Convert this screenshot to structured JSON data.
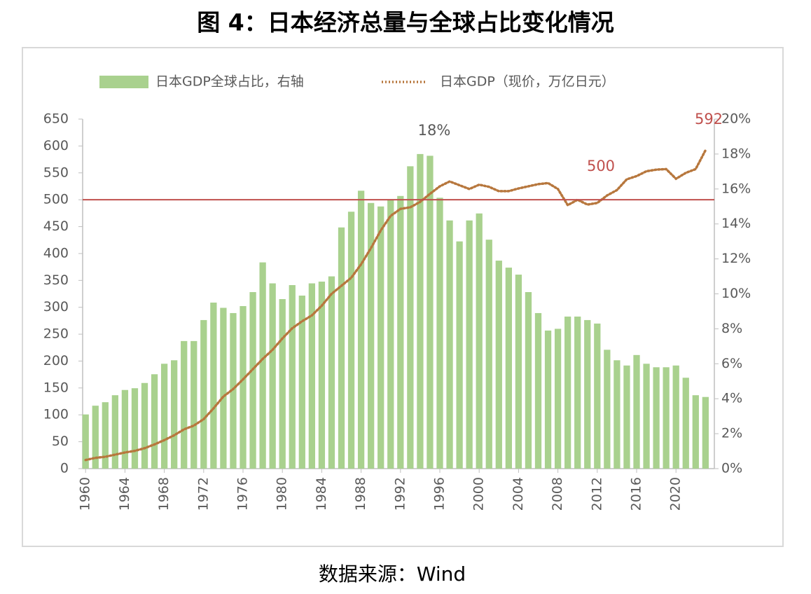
{
  "chart_data": {
    "type": "bar",
    "title": "图 4：日本经济总量与全球占比变化情况",
    "source": "数据来源：Wind",
    "x": [
      1960,
      1961,
      1962,
      1963,
      1964,
      1965,
      1966,
      1967,
      1968,
      1969,
      1970,
      1971,
      1972,
      1973,
      1974,
      1975,
      1976,
      1977,
      1978,
      1979,
      1980,
      1981,
      1982,
      1983,
      1984,
      1985,
      1986,
      1987,
      1988,
      1989,
      1990,
      1991,
      1992,
      1993,
      1994,
      1995,
      1996,
      1997,
      1998,
      1999,
      2000,
      2001,
      2002,
      2003,
      2004,
      2005,
      2006,
      2007,
      2008,
      2009,
      2010,
      2011,
      2012,
      2013,
      2014,
      2015,
      2016,
      2017,
      2018,
      2019,
      2020,
      2021,
      2022,
      2023
    ],
    "xlim": [
      1959.7,
      2023.9
    ],
    "xticks": [
      1960,
      1964,
      1968,
      1972,
      1976,
      1980,
      1984,
      1988,
      1992,
      1996,
      2000,
      2004,
      2008,
      2012,
      2016,
      2020
    ],
    "ylim": [
      0,
      650
    ],
    "yticks": [
      0,
      50,
      100,
      150,
      200,
      250,
      300,
      350,
      400,
      450,
      500,
      550,
      600,
      650
    ],
    "y2lim": [
      0,
      20
    ],
    "y2ticks": [
      {
        "value": 0,
        "label": "0%"
      },
      {
        "value": 2,
        "label": "2%"
      },
      {
        "value": 4,
        "label": "4%"
      },
      {
        "value": 6,
        "label": "6%"
      },
      {
        "value": 8,
        "label": "8%"
      },
      {
        "value": 10,
        "label": "10%"
      },
      {
        "value": 12,
        "label": "12%"
      },
      {
        "value": 14,
        "label": "14%"
      },
      {
        "value": 16,
        "label": "16%"
      },
      {
        "value": 18,
        "label": "18%"
      },
      {
        "value": 20,
        "label": "20%"
      }
    ],
    "series": [
      {
        "name": "日本GDP全球占比，右轴",
        "type": "bar",
        "axis": "y2",
        "color": "#a9d18e",
        "values": [
          3.1,
          3.6,
          3.8,
          4.2,
          4.5,
          4.6,
          4.9,
          5.4,
          6.0,
          6.2,
          7.3,
          7.3,
          8.5,
          9.5,
          9.2,
          8.9,
          9.3,
          10.1,
          11.8,
          10.6,
          9.7,
          10.5,
          9.9,
          10.6,
          10.7,
          11.0,
          13.8,
          14.7,
          15.9,
          15.2,
          15.0,
          15.4,
          15.6,
          17.3,
          18.0,
          17.9,
          15.5,
          14.2,
          13.0,
          14.2,
          14.6,
          13.1,
          11.9,
          11.5,
          11.1,
          10.1,
          8.9,
          7.9,
          8.0,
          8.7,
          8.7,
          8.5,
          8.3,
          6.8,
          6.2,
          5.9,
          6.5,
          6.0,
          5.8,
          5.8,
          5.9,
          5.2,
          4.2,
          4.1
        ]
      },
      {
        "name": "日本GDP（现价，万亿日元）",
        "type": "line",
        "color": "#b7773d",
        "values": [
          16,
          20,
          22,
          26,
          30,
          33,
          38,
          45,
          53,
          62,
          73,
          80,
          92,
          112,
          134,
          148,
          166,
          185,
          204,
          221,
          242,
          261,
          274,
          285,
          303,
          325,
          340,
          355,
          380,
          410,
          443,
          470,
          483,
          486,
          496,
          511,
          525,
          534,
          527,
          520,
          528,
          524,
          516,
          516,
          521,
          525,
          529,
          531,
          520,
          490,
          500,
          491,
          494,
          508,
          518,
          538,
          544,
          553,
          556,
          557,
          539,
          550,
          557,
          592
        ]
      }
    ],
    "reference_line": {
      "value": 500,
      "color": "#c0504d"
    },
    "annotations": [
      "18%",
      "500",
      "592"
    ],
    "legend": "top"
  }
}
